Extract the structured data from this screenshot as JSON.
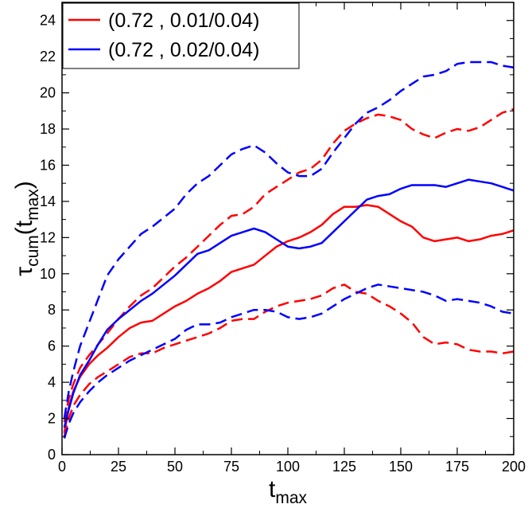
{
  "chart_data": {
    "type": "line",
    "xlabel": {
      "base": "t",
      "sub": "max"
    },
    "ylabel": {
      "base": "τ",
      "sub1": "cum",
      "mid": "(t",
      "sub2": "max",
      "end": ")"
    },
    "xlim": [
      0,
      200
    ],
    "ylim": [
      0,
      25
    ],
    "x_ticks": [
      0,
      25,
      50,
      75,
      100,
      125,
      150,
      175,
      200
    ],
    "y_ticks": [
      0,
      2,
      4,
      6,
      8,
      10,
      12,
      14,
      16,
      18,
      20,
      22,
      24
    ],
    "grid": false,
    "legend_position": "top-left",
    "legend": [
      {
        "label": "(0.72 , 0.01/0.04)",
        "color": "#ff0000"
      },
      {
        "label": "(0.72 , 0.02/0.04)",
        "color": "#0000ff"
      }
    ],
    "series": [
      {
        "legend_index": 0,
        "color": "#ff0000",
        "style": "solid",
        "points": [
          [
            1,
            1.2
          ],
          [
            3,
            2.6
          ],
          [
            5,
            3.5
          ],
          [
            8,
            4.3
          ],
          [
            12,
            5.0
          ],
          [
            16,
            5.5
          ],
          [
            20,
            5.9
          ],
          [
            25,
            6.5
          ],
          [
            30,
            7.0
          ],
          [
            35,
            7.3
          ],
          [
            40,
            7.4
          ],
          [
            45,
            7.8
          ],
          [
            50,
            8.2
          ],
          [
            55,
            8.5
          ],
          [
            60,
            8.9
          ],
          [
            65,
            9.2
          ],
          [
            70,
            9.6
          ],
          [
            75,
            10.1
          ],
          [
            80,
            10.3
          ],
          [
            85,
            10.5
          ],
          [
            90,
            11.0
          ],
          [
            95,
            11.5
          ],
          [
            100,
            11.8
          ],
          [
            105,
            12.0
          ],
          [
            110,
            12.3
          ],
          [
            115,
            12.7
          ],
          [
            120,
            13.3
          ],
          [
            125,
            13.7
          ],
          [
            130,
            13.7
          ],
          [
            135,
            13.8
          ],
          [
            140,
            13.7
          ],
          [
            145,
            13.3
          ],
          [
            150,
            12.9
          ],
          [
            155,
            12.6
          ],
          [
            160,
            12.0
          ],
          [
            165,
            11.8
          ],
          [
            170,
            11.9
          ],
          [
            175,
            12.0
          ],
          [
            180,
            11.8
          ],
          [
            185,
            11.9
          ],
          [
            190,
            12.1
          ],
          [
            195,
            12.2
          ],
          [
            200,
            12.4
          ]
        ]
      },
      {
        "legend_index": 0,
        "color": "#ff0000",
        "style": "dashed",
        "points": [
          [
            1,
            1.8
          ],
          [
            3,
            3.1
          ],
          [
            5,
            3.9
          ],
          [
            8,
            4.8
          ],
          [
            12,
            5.5
          ],
          [
            16,
            6.1
          ],
          [
            20,
            6.7
          ],
          [
            25,
            7.5
          ],
          [
            30,
            8.2
          ],
          [
            35,
            8.8
          ],
          [
            40,
            9.2
          ],
          [
            45,
            9.8
          ],
          [
            50,
            10.4
          ],
          [
            55,
            10.9
          ],
          [
            60,
            11.5
          ],
          [
            65,
            12.1
          ],
          [
            70,
            12.7
          ],
          [
            75,
            13.2
          ],
          [
            80,
            13.3
          ],
          [
            85,
            13.7
          ],
          [
            90,
            14.4
          ],
          [
            95,
            14.8
          ],
          [
            100,
            15.2
          ],
          [
            105,
            15.6
          ],
          [
            110,
            15.8
          ],
          [
            115,
            16.3
          ],
          [
            120,
            17.2
          ],
          [
            125,
            17.9
          ],
          [
            130,
            18.3
          ],
          [
            135,
            18.6
          ],
          [
            140,
            18.8
          ],
          [
            145,
            18.7
          ],
          [
            150,
            18.5
          ],
          [
            155,
            18.0
          ],
          [
            160,
            17.7
          ],
          [
            165,
            17.5
          ],
          [
            170,
            17.8
          ],
          [
            175,
            18.0
          ],
          [
            180,
            17.9
          ],
          [
            185,
            18.1
          ],
          [
            190,
            18.5
          ],
          [
            195,
            18.9
          ],
          [
            200,
            19.1
          ]
        ]
      },
      {
        "legend_index": 0,
        "color": "#ff0000",
        "style": "dashed",
        "points": [
          [
            1,
            1.0
          ],
          [
            3,
            2.0
          ],
          [
            5,
            2.7
          ],
          [
            8,
            3.3
          ],
          [
            12,
            3.9
          ],
          [
            16,
            4.3
          ],
          [
            20,
            4.6
          ],
          [
            25,
            5.0
          ],
          [
            30,
            5.4
          ],
          [
            35,
            5.6
          ],
          [
            40,
            5.6
          ],
          [
            45,
            5.9
          ],
          [
            50,
            6.1
          ],
          [
            55,
            6.3
          ],
          [
            60,
            6.5
          ],
          [
            65,
            6.7
          ],
          [
            70,
            7.0
          ],
          [
            75,
            7.4
          ],
          [
            80,
            7.5
          ],
          [
            85,
            7.5
          ],
          [
            90,
            7.9
          ],
          [
            95,
            8.2
          ],
          [
            100,
            8.4
          ],
          [
            105,
            8.5
          ],
          [
            110,
            8.6
          ],
          [
            115,
            8.8
          ],
          [
            120,
            9.2
          ],
          [
            125,
            9.4
          ],
          [
            130,
            9.0
          ],
          [
            135,
            8.9
          ],
          [
            140,
            8.5
          ],
          [
            145,
            8.2
          ],
          [
            150,
            7.8
          ],
          [
            155,
            7.3
          ],
          [
            160,
            6.5
          ],
          [
            165,
            6.1
          ],
          [
            170,
            6.2
          ],
          [
            175,
            6.1
          ],
          [
            180,
            5.8
          ],
          [
            185,
            5.7
          ],
          [
            190,
            5.7
          ],
          [
            195,
            5.6
          ],
          [
            200,
            5.7
          ]
        ]
      },
      {
        "legend_index": 1,
        "color": "#0000ff",
        "style": "solid",
        "points": [
          [
            1,
            1.5
          ],
          [
            3,
            2.5
          ],
          [
            5,
            3.4
          ],
          [
            8,
            4.4
          ],
          [
            12,
            5.2
          ],
          [
            16,
            6.1
          ],
          [
            20,
            6.9
          ],
          [
            25,
            7.5
          ],
          [
            30,
            8.0
          ],
          [
            35,
            8.5
          ],
          [
            40,
            8.9
          ],
          [
            45,
            9.4
          ],
          [
            50,
            9.9
          ],
          [
            55,
            10.5
          ],
          [
            60,
            11.1
          ],
          [
            65,
            11.3
          ],
          [
            70,
            11.7
          ],
          [
            75,
            12.1
          ],
          [
            80,
            12.3
          ],
          [
            85,
            12.5
          ],
          [
            90,
            12.3
          ],
          [
            95,
            11.9
          ],
          [
            100,
            11.5
          ],
          [
            105,
            11.4
          ],
          [
            110,
            11.5
          ],
          [
            115,
            11.7
          ],
          [
            120,
            12.3
          ],
          [
            125,
            12.9
          ],
          [
            130,
            13.5
          ],
          [
            135,
            14.1
          ],
          [
            140,
            14.3
          ],
          [
            145,
            14.4
          ],
          [
            150,
            14.7
          ],
          [
            155,
            14.9
          ],
          [
            160,
            14.9
          ],
          [
            165,
            14.9
          ],
          [
            170,
            14.8
          ],
          [
            175,
            15.0
          ],
          [
            180,
            15.2
          ],
          [
            185,
            15.1
          ],
          [
            190,
            15.0
          ],
          [
            195,
            14.8
          ],
          [
            200,
            14.6
          ]
        ]
      },
      {
        "legend_index": 1,
        "color": "#0000ff",
        "style": "dashed",
        "points": [
          [
            1,
            2.0
          ],
          [
            3,
            3.5
          ],
          [
            5,
            4.6
          ],
          [
            8,
            6.0
          ],
          [
            12,
            7.3
          ],
          [
            16,
            8.6
          ],
          [
            20,
            9.9
          ],
          [
            25,
            10.8
          ],
          [
            30,
            11.5
          ],
          [
            35,
            12.2
          ],
          [
            40,
            12.6
          ],
          [
            45,
            13.1
          ],
          [
            50,
            13.6
          ],
          [
            55,
            14.4
          ],
          [
            60,
            15.0
          ],
          [
            65,
            15.4
          ],
          [
            70,
            16.0
          ],
          [
            75,
            16.6
          ],
          [
            80,
            16.9
          ],
          [
            85,
            17.1
          ],
          [
            90,
            16.7
          ],
          [
            95,
            16.1
          ],
          [
            100,
            15.6
          ],
          [
            105,
            15.4
          ],
          [
            110,
            15.4
          ],
          [
            115,
            15.8
          ],
          [
            120,
            16.7
          ],
          [
            125,
            17.5
          ],
          [
            130,
            18.3
          ],
          [
            135,
            18.9
          ],
          [
            140,
            19.2
          ],
          [
            145,
            19.6
          ],
          [
            150,
            20.1
          ],
          [
            155,
            20.5
          ],
          [
            160,
            20.9
          ],
          [
            165,
            21.0
          ],
          [
            170,
            21.2
          ],
          [
            175,
            21.6
          ],
          [
            180,
            21.7
          ],
          [
            185,
            21.7
          ],
          [
            190,
            21.7
          ],
          [
            195,
            21.5
          ],
          [
            200,
            21.4
          ]
        ]
      },
      {
        "legend_index": 1,
        "color": "#0000ff",
        "style": "dashed",
        "points": [
          [
            1,
            0.9
          ],
          [
            3,
            1.7
          ],
          [
            5,
            2.3
          ],
          [
            8,
            2.9
          ],
          [
            12,
            3.5
          ],
          [
            16,
            4.0
          ],
          [
            20,
            4.4
          ],
          [
            25,
            4.8
          ],
          [
            30,
            5.2
          ],
          [
            35,
            5.5
          ],
          [
            40,
            5.8
          ],
          [
            45,
            6.1
          ],
          [
            50,
            6.4
          ],
          [
            55,
            6.9
          ],
          [
            60,
            7.2
          ],
          [
            65,
            7.2
          ],
          [
            70,
            7.3
          ],
          [
            75,
            7.6
          ],
          [
            80,
            7.8
          ],
          [
            85,
            8.0
          ],
          [
            90,
            8.0
          ],
          [
            95,
            7.9
          ],
          [
            100,
            7.6
          ],
          [
            105,
            7.5
          ],
          [
            110,
            7.6
          ],
          [
            115,
            7.8
          ],
          [
            120,
            8.2
          ],
          [
            125,
            8.6
          ],
          [
            130,
            8.9
          ],
          [
            135,
            9.2
          ],
          [
            140,
            9.4
          ],
          [
            145,
            9.3
          ],
          [
            150,
            9.2
          ],
          [
            155,
            9.1
          ],
          [
            160,
            9.0
          ],
          [
            165,
            8.8
          ],
          [
            170,
            8.5
          ],
          [
            175,
            8.6
          ],
          [
            180,
            8.5
          ],
          [
            185,
            8.4
          ],
          [
            190,
            8.2
          ],
          [
            195,
            7.9
          ],
          [
            200,
            7.8
          ]
        ]
      }
    ]
  }
}
